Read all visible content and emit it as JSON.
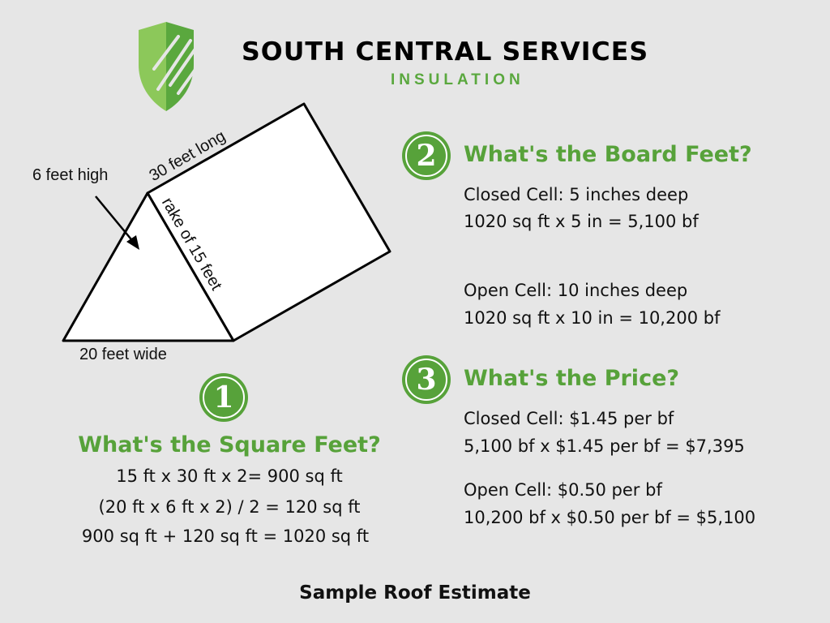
{
  "brand": {
    "name": "SOUTH CENTRAL SERVICES",
    "tagline": "INSULATION",
    "logo_icon": "shield-icon",
    "accent": "#57a23a"
  },
  "diagram": {
    "height_label": "6 feet high",
    "length_label": "30 feet long",
    "rake_label": "rake of 15 feet",
    "width_label": "20 feet wide"
  },
  "steps": [
    {
      "number": "1",
      "title": "What's the Square Feet?",
      "lines": [
        "15 ft x 30 ft x 2= 900 sq ft",
        "(20 ft x 6 ft x 2) / 2 = 120 sq ft",
        "900 sq ft + 120 sq ft = 1020 sq ft"
      ]
    },
    {
      "number": "2",
      "title": "What's the Board Feet?",
      "lines": [
        "Closed Cell: 5 inches deep",
        "1020 sq ft x 5 in = 5,100 bf",
        "Open Cell: 10 inches deep",
        "1020 sq ft x 10 in = 10,200 bf"
      ]
    },
    {
      "number": "3",
      "title": "What's the Price?",
      "lines": [
        "Closed Cell: $1.45 per bf",
        "5,100 bf x $1.45 per bf = $7,395",
        "Open Cell: $0.50 per bf",
        "10,200 bf x $0.50 per bf = $5,100"
      ]
    }
  ],
  "footer": "Sample Roof Estimate"
}
